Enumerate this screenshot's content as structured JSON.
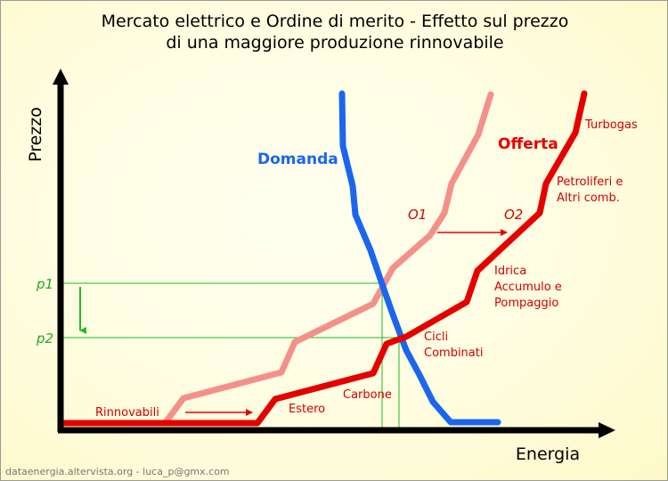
{
  "title": {
    "line1": "Mercato elettrico e Ordine di merito - Effetto sul prezzo",
    "line2": "di una maggiore produzione rinnovabile"
  },
  "axes": {
    "y_label": "Prezzo",
    "x_label": "Energia"
  },
  "curve_labels": {
    "demand": "Domanda",
    "supply": "Offerta",
    "o1": "O1",
    "o2": "O2"
  },
  "price_labels": {
    "p1": "p1",
    "p2": "p2"
  },
  "source_labels": {
    "renewables": "Rinnovabili",
    "abroad": "Estero",
    "coal": "Carbone",
    "combined_cycle_l1": "Cicli",
    "combined_cycle_l2": "Combinati",
    "hydro_l1": "Idrica",
    "hydro_l2": "Accumulo e",
    "hydro_l3": "Pompaggio",
    "oil_l1": "Petroliferi e",
    "oil_l2": "Altri comb.",
    "turbogas": "Turbogas"
  },
  "footer": "dataenergia.altervista.org - luca_p@gmx.com",
  "colors": {
    "axis": "#000000",
    "demand": "#1a66ee",
    "supply_o1": "#f4908a",
    "supply_o2": "#e50000",
    "label_red": "#d00000",
    "guides": "#22bb22",
    "footer": "#777777"
  }
}
